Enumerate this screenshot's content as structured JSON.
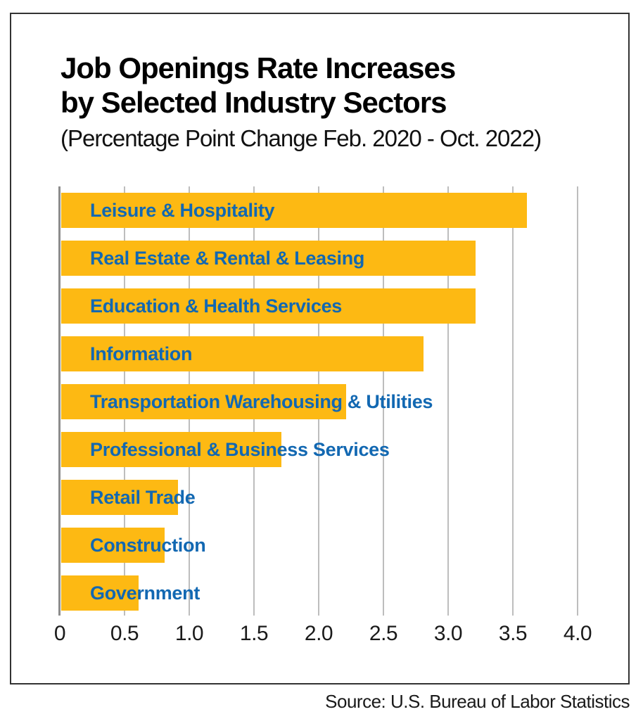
{
  "page": {
    "background": "#ffffff",
    "frame_border_color": "#333333"
  },
  "header": {
    "title_line1": "Job Openings Rate Increases",
    "title_line2": "by Selected Industry Sectors",
    "subtitle": "(Percentage Point Change Feb. 2020 - Oct. 2022)"
  },
  "footer": {
    "source": "Source: U.S. Bureau of Labor Statistics"
  },
  "chart_data": {
    "type": "bar",
    "orientation": "horizontal",
    "title": "Job Openings Rate Increases by Selected Industry Sectors",
    "subtitle": "(Percentage Point Change Feb. 2020 - Oct. 2022)",
    "categories": [
      "Leisure & Hospitality",
      "Real Estate & Rental & Leasing",
      "Education & Health Services",
      "Information",
      "Transportation Warehousing & Utilities",
      "Professional & Business Services",
      "Retail Trade",
      "Construction",
      "Government"
    ],
    "values": [
      3.6,
      3.2,
      3.2,
      2.8,
      2.2,
      1.7,
      0.9,
      0.8,
      0.6
    ],
    "xlabel": "",
    "ylabel": "",
    "xlim": [
      0,
      4.0
    ],
    "xticks": [
      {
        "value": 0,
        "label": "0"
      },
      {
        "value": 0.5,
        "label": "0.5"
      },
      {
        "value": 1.0,
        "label": "1.0"
      },
      {
        "value": 1.5,
        "label": "1.5"
      },
      {
        "value": 2.0,
        "label": "2.0"
      },
      {
        "value": 2.5,
        "label": "2.5"
      },
      {
        "value": 3.0,
        "label": "3.0"
      },
      {
        "value": 3.5,
        "label": "3.5"
      },
      {
        "value": 4.0,
        "label": "4.0"
      }
    ],
    "grid": true,
    "legend": false,
    "colors": {
      "bar": "#FDB913",
      "category_label": "#1268B2",
      "axis_line": "#8C8C8C",
      "gridline": "#BDBDBD",
      "tick_label": "#1A1A1A",
      "title": "#000000",
      "source": "#1A1A1A"
    },
    "source": "Source: U.S. Bureau of Labor Statistics"
  }
}
